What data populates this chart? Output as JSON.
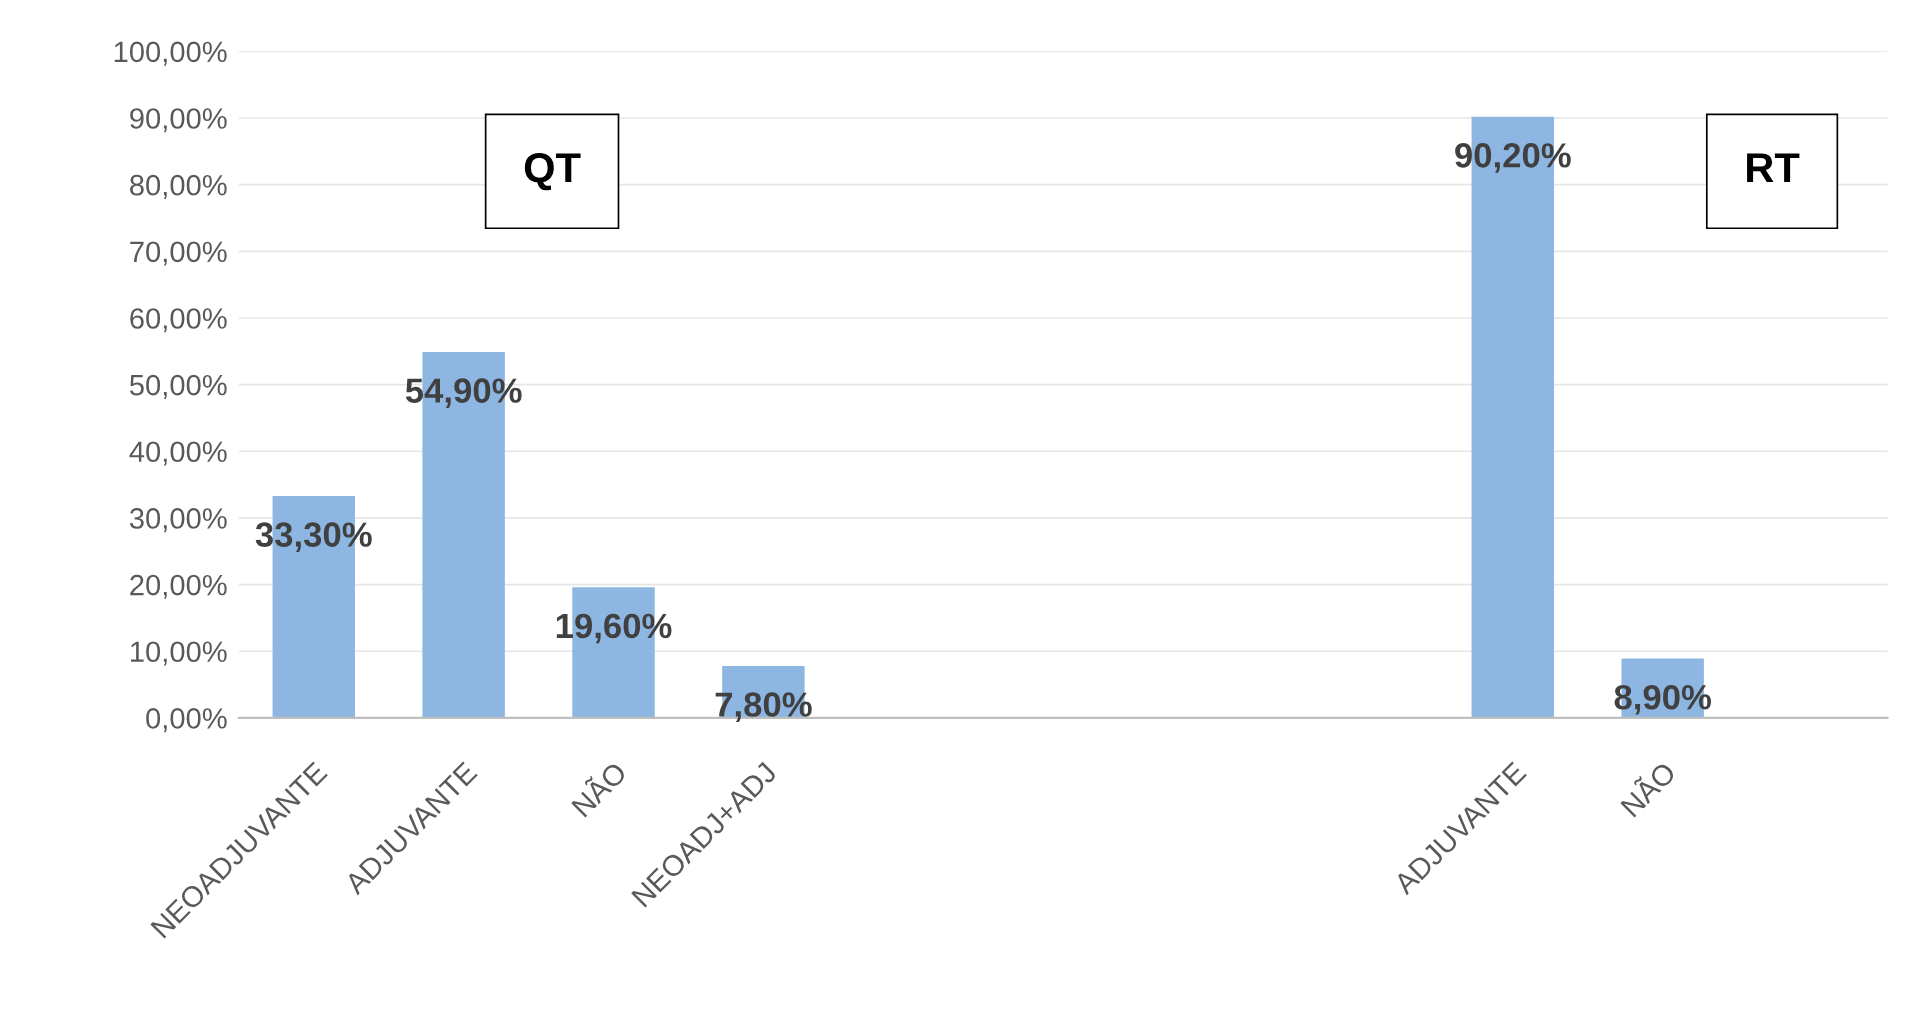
{
  "chart_data": {
    "type": "bar",
    "categories": [
      "NEOADJUVANTE",
      "ADJUVANTE",
      "NÃO",
      "NEOADJ+ADJ",
      null,
      null,
      null,
      null,
      "ADJUVANTE",
      "NÃO",
      null
    ],
    "values": [
      33.3,
      54.9,
      19.6,
      7.8,
      null,
      null,
      null,
      null,
      90.2,
      8.9,
      null
    ],
    "value_labels": [
      "33,30%",
      "54,90%",
      "19,60%",
      "7,80%",
      null,
      null,
      null,
      null,
      "90,20%",
      "8,90%",
      null
    ],
    "color": "#8db7e2",
    "ylim": [
      0,
      100
    ],
    "yticks": [
      {
        "value": 0,
        "label": "0,00%"
      },
      {
        "value": 10,
        "label": "10,00%"
      },
      {
        "value": 20,
        "label": "20,00%"
      },
      {
        "value": 30,
        "label": "30,00%"
      },
      {
        "value": 40,
        "label": "40,00%"
      },
      {
        "value": 50,
        "label": "50,00%"
      },
      {
        "value": 60,
        "label": "60,00%"
      },
      {
        "value": 70,
        "label": "70,00%"
      },
      {
        "value": 80,
        "label": "80,00%"
      },
      {
        "value": 90,
        "label": "90,00%"
      },
      {
        "value": 100,
        "label": "100,00%"
      }
    ],
    "grid": "y",
    "annotations": [
      "QT",
      "RT"
    ]
  }
}
